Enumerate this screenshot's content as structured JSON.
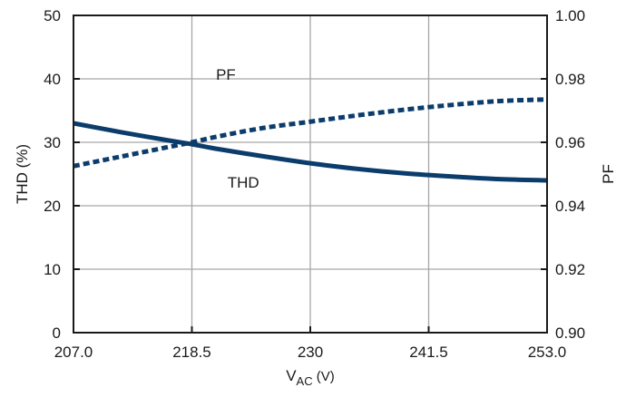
{
  "chart_data": {
    "type": "line",
    "title": "",
    "xlabel": {
      "main": "V",
      "sub": "AC",
      "unit": " (V)"
    },
    "ylabel_left": "THD (%)",
    "ylabel_right": "PF",
    "xlim": [
      207.0,
      253.0
    ],
    "ylim_left": [
      0,
      50
    ],
    "ylim_right": [
      0.9,
      1.0
    ],
    "grid": true,
    "x_tick_values": [
      207.0,
      218.5,
      230,
      241.5,
      253.0
    ],
    "x_tick_labels": [
      "207.0",
      "218.5",
      "230",
      "241.5",
      "253.0"
    ],
    "y_left_tick_values": [
      0,
      10,
      20,
      30,
      40,
      50
    ],
    "y_left_tick_labels": [
      "0",
      "10",
      "20",
      "30",
      "40",
      "50"
    ],
    "y_right_tick_values": [
      0.9,
      0.92,
      0.94,
      0.96,
      0.98,
      1.0
    ],
    "y_right_tick_labels": [
      "0.90",
      "0.92",
      "0.94",
      "0.96",
      "0.98",
      "1.00"
    ],
    "series": [
      {
        "name": "THD",
        "axis": "left",
        "style": "solid",
        "color": "#0b3c6b",
        "x": [
          207.0,
          211.6,
          216.2,
          218.5,
          220.8,
          225.4,
          230,
          234.6,
          239.2,
          243.8,
          248.4,
          253.0
        ],
        "y": [
          33.0,
          31.6,
          30.3,
          29.7,
          29.0,
          27.8,
          26.7,
          25.8,
          25.1,
          24.6,
          24.2,
          24.0
        ]
      },
      {
        "name": "PF",
        "axis": "right",
        "style": "dashed",
        "color": "#0b3c6b",
        "x": [
          207.0,
          211.6,
          216.2,
          218.5,
          220.8,
          225.4,
          230,
          234.6,
          239.2,
          243.8,
          248.4,
          253.0
        ],
        "y": [
          0.9525,
          0.9555,
          0.9585,
          0.96,
          0.9617,
          0.9645,
          0.9665,
          0.9685,
          0.9703,
          0.9718,
          0.973,
          0.9735
        ]
      }
    ],
    "annotations": [
      {
        "text": "PF",
        "series": "PF",
        "x": 221.8,
        "y": 0.9815
      },
      {
        "text": "THD",
        "series": "THD",
        "x": 223.5,
        "y": 23.7
      }
    ]
  }
}
